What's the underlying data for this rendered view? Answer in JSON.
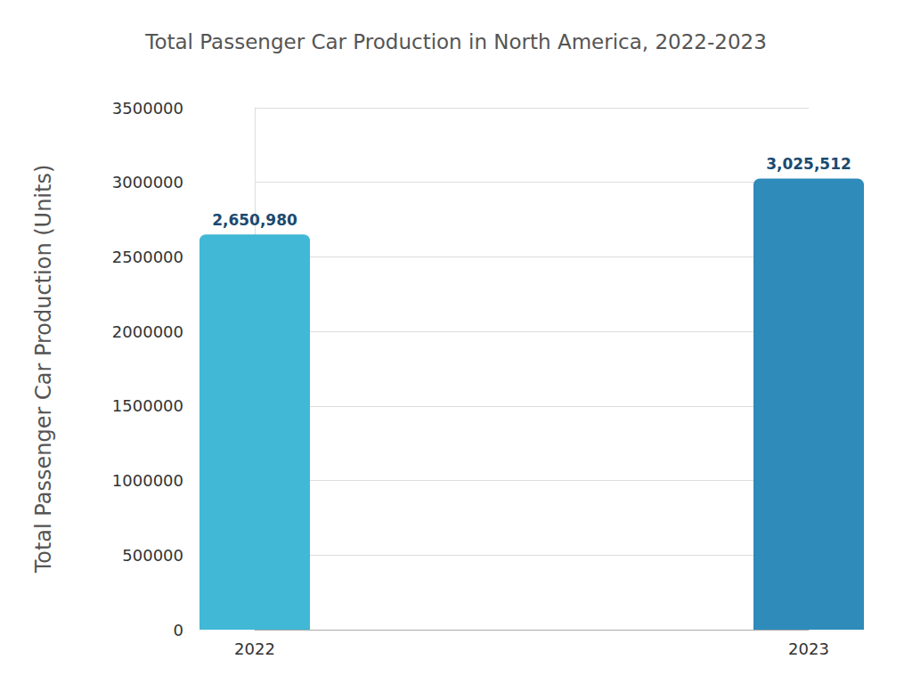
{
  "chart_data": {
    "type": "bar",
    "title": "Total Passenger Car Production in North America, 2022-2023",
    "y_label": "Total Passenger Car Production (Units)",
    "categories": [
      "2022",
      "2023"
    ],
    "values": [
      2650980,
      3025512
    ],
    "value_labels": [
      "2,650,980",
      "3,025,512"
    ],
    "colors": [
      "#41b8d5",
      "#2e8bba"
    ],
    "ylim": [
      0,
      3500000
    ],
    "yticks": [
      0,
      500000,
      1000000,
      1500000,
      2000000,
      2500000,
      3000000,
      3500000
    ],
    "grid": true,
    "data_labels": true
  }
}
